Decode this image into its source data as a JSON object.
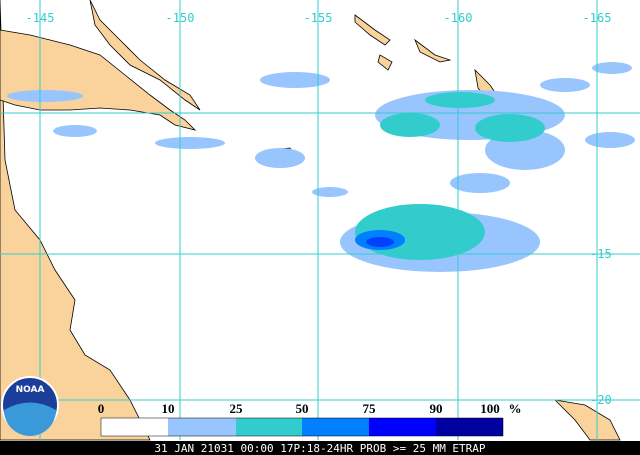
{
  "longitude_labels": [
    "-145",
    "-150",
    "-155",
    "-160",
    "-165"
  ],
  "latitude_labels": [
    "-15",
    "-20"
  ],
  "legend": {
    "labels": [
      "0",
      "10",
      "25",
      "50",
      "75",
      "90",
      "100"
    ],
    "unit": "%"
  },
  "logo": "NOAA",
  "footer": "31 JAN 21031 00:00 17P:18-24HR PROB >= 25 MM ETRAP"
}
